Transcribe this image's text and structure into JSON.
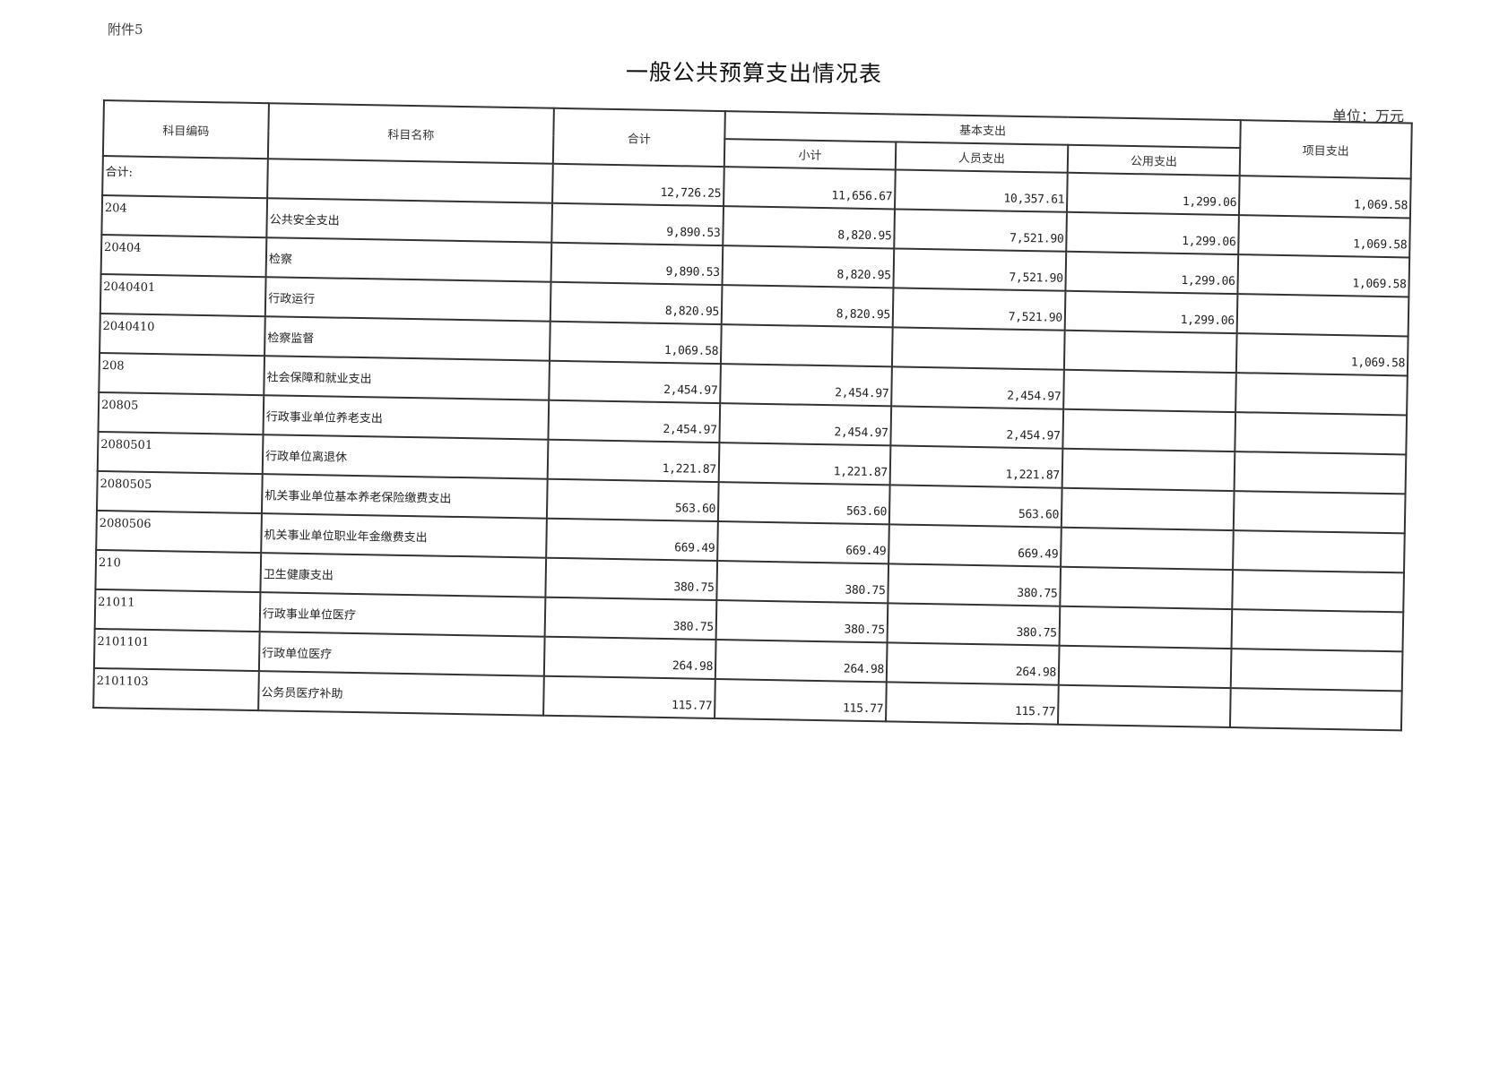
{
  "attachment_label": "附件5",
  "title": "一般公共预算支出情况表",
  "unit": "单位：万元",
  "headers": {
    "code": "科目编码",
    "name": "科目名称",
    "total": "合计",
    "basic": "基本支出",
    "subtotal": "小计",
    "personnel": "人员支出",
    "public": "公用支出",
    "project": "项目支出"
  },
  "rows": [
    {
      "code": "合计:",
      "name": "",
      "total": "12,726.25",
      "subtotal": "11,656.67",
      "personnel": "10,357.61",
      "public": "1,299.06",
      "project": "1,069.58"
    },
    {
      "code": "204",
      "name": "公共安全支出",
      "total": "9,890.53",
      "subtotal": "8,820.95",
      "personnel": "7,521.90",
      "public": "1,299.06",
      "project": "1,069.58"
    },
    {
      "code": "20404",
      "name": "检察",
      "total": "9,890.53",
      "subtotal": "8,820.95",
      "personnel": "7,521.90",
      "public": "1,299.06",
      "project": "1,069.58"
    },
    {
      "code": "2040401",
      "name": "行政运行",
      "total": "8,820.95",
      "subtotal": "8,820.95",
      "personnel": "7,521.90",
      "public": "1,299.06",
      "project": ""
    },
    {
      "code": "2040410",
      "name": "检察监督",
      "total": "1,069.58",
      "subtotal": "",
      "personnel": "",
      "public": "",
      "project": "1,069.58"
    },
    {
      "code": "208",
      "name": "社会保障和就业支出",
      "total": "2,454.97",
      "subtotal": "2,454.97",
      "personnel": "2,454.97",
      "public": "",
      "project": ""
    },
    {
      "code": "20805",
      "name": "行政事业单位养老支出",
      "total": "2,454.97",
      "subtotal": "2,454.97",
      "personnel": "2,454.97",
      "public": "",
      "project": ""
    },
    {
      "code": "2080501",
      "name": "行政单位离退休",
      "total": "1,221.87",
      "subtotal": "1,221.87",
      "personnel": "1,221.87",
      "public": "",
      "project": ""
    },
    {
      "code": "2080505",
      "name": "机关事业单位基本养老保险缴费支出",
      "total": "563.60",
      "subtotal": "563.60",
      "personnel": "563.60",
      "public": "",
      "project": ""
    },
    {
      "code": "2080506",
      "name": "机关事业单位职业年金缴费支出",
      "total": "669.49",
      "subtotal": "669.49",
      "personnel": "669.49",
      "public": "",
      "project": ""
    },
    {
      "code": "210",
      "name": "卫生健康支出",
      "total": "380.75",
      "subtotal": "380.75",
      "personnel": "380.75",
      "public": "",
      "project": ""
    },
    {
      "code": "21011",
      "name": "行政事业单位医疗",
      "total": "380.75",
      "subtotal": "380.75",
      "personnel": "380.75",
      "public": "",
      "project": ""
    },
    {
      "code": "2101101",
      "name": "行政单位医疗",
      "total": "264.98",
      "subtotal": "264.98",
      "personnel": "264.98",
      "public": "",
      "project": ""
    },
    {
      "code": "2101103",
      "name": "公务员医疗补助",
      "total": "115.77",
      "subtotal": "115.77",
      "personnel": "115.77",
      "public": "",
      "project": ""
    }
  ]
}
